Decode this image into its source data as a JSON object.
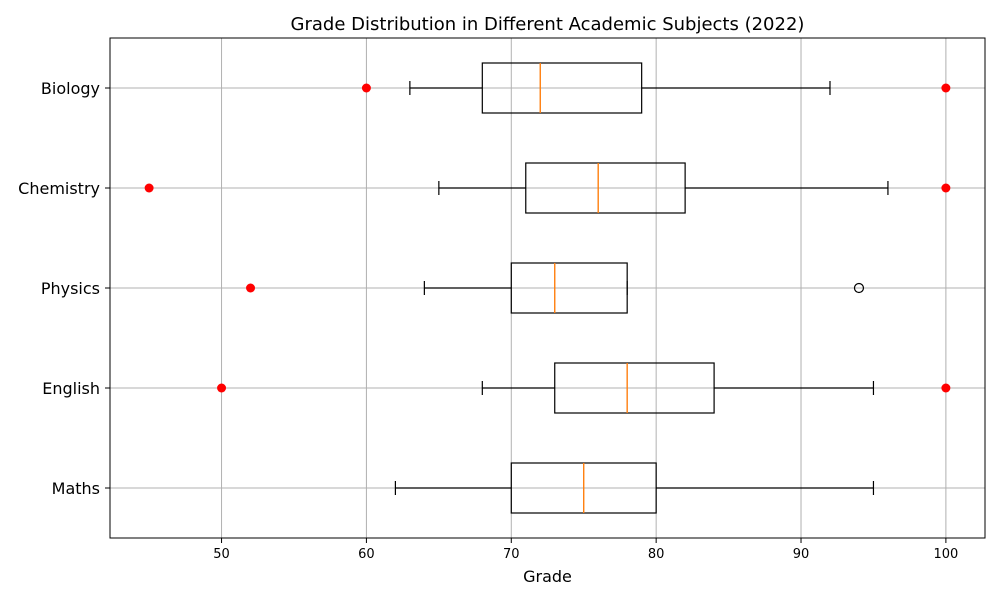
{
  "chart_data": {
    "type": "boxplot",
    "orientation": "horizontal",
    "title": "Grade Distribution in Different Academic Subjects (2022)",
    "xlabel": "Grade",
    "ylabel": "",
    "xlim": [
      42.3,
      102.7
    ],
    "xticks": [
      50,
      60,
      70,
      80,
      90,
      100
    ],
    "grid": true,
    "colors": {
      "box": "#000000",
      "median": "#ff7f0e",
      "grid": "#b0b0b0",
      "highlighted_outlier": "#ff0000"
    },
    "categories": [
      "Maths",
      "English",
      "Physics",
      "Chemistry",
      "Biology"
    ],
    "boxes": [
      {
        "name": "Maths",
        "whisker_low": 62,
        "q1": 70,
        "median": 75,
        "q3": 80,
        "whisker_high": 95,
        "flier_points": [],
        "highlighted_points": []
      },
      {
        "name": "English",
        "whisker_low": 68,
        "q1": 73,
        "median": 78,
        "q3": 84,
        "whisker_high": 95,
        "flier_points": [],
        "highlighted_points": [
          50,
          100
        ]
      },
      {
        "name": "Physics",
        "whisker_low": 64,
        "q1": 70,
        "median": 73,
        "q3": 78,
        "whisker_high": 78,
        "flier_points": [
          94
        ],
        "highlighted_points": [
          52
        ]
      },
      {
        "name": "Chemistry",
        "whisker_low": 65,
        "q1": 71,
        "median": 76,
        "q3": 82,
        "whisker_high": 96,
        "flier_points": [],
        "highlighted_points": [
          45,
          100
        ]
      },
      {
        "name": "Biology",
        "whisker_low": 63,
        "q1": 68,
        "median": 72,
        "q3": 79,
        "whisker_high": 92,
        "flier_points": [],
        "highlighted_points": [
          60,
          100
        ]
      }
    ]
  }
}
